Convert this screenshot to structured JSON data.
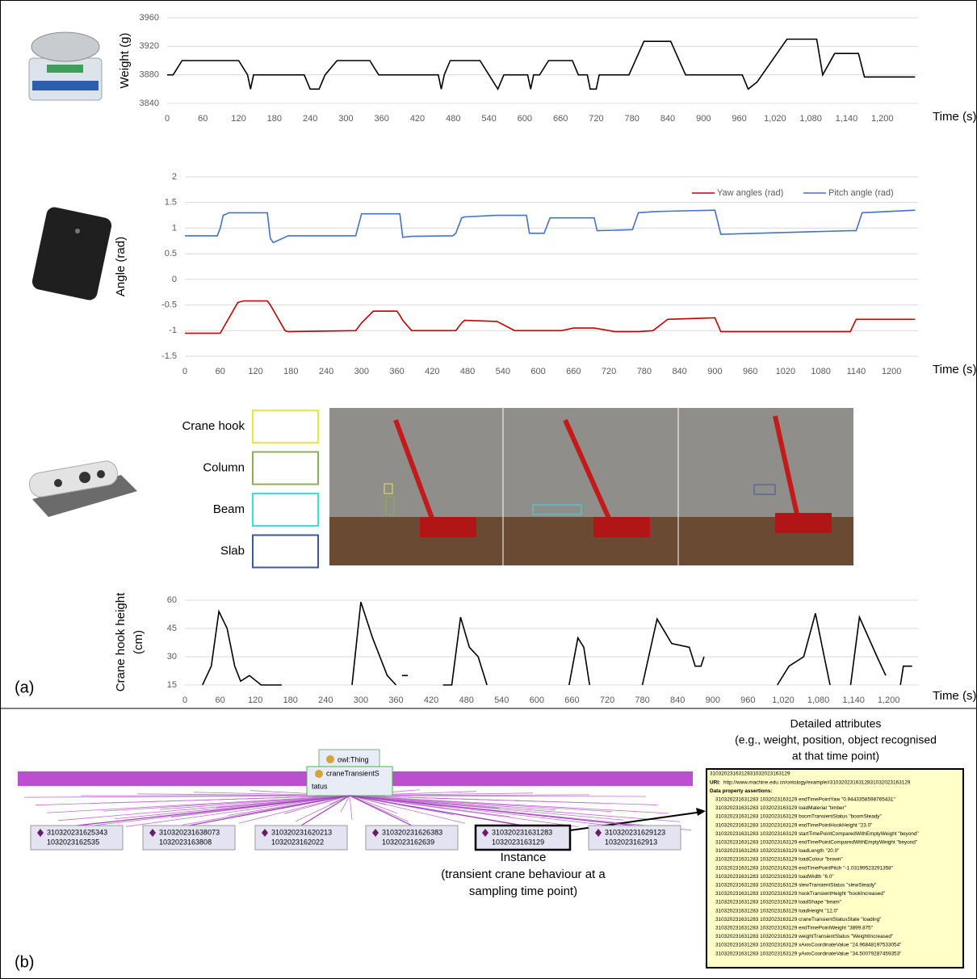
{
  "chart_data": [
    {
      "type": "line",
      "ylabel": "Weight (g)",
      "xlabel": "Time (s)",
      "xlim": [
        0,
        1260
      ],
      "ylim": [
        3840,
        3960
      ],
      "yticks": [
        3840,
        3880,
        3920,
        3960
      ],
      "xticks": [
        0,
        60,
        120,
        180,
        240,
        300,
        360,
        420,
        480,
        540,
        600,
        660,
        720,
        780,
        840,
        900,
        960,
        {
          "value": 1020,
          "label": "1,020"
        },
        {
          "value": 1080,
          "label": "1,080"
        },
        {
          "value": 1140,
          "label": "1,140"
        },
        {
          "value": 1200,
          "label": "1,200"
        }
      ],
      "grid": true,
      "x": [
        0,
        10,
        25,
        75,
        120,
        135,
        140,
        145,
        185,
        230,
        240,
        255,
        265,
        285,
        340,
        355,
        455,
        460,
        465,
        475,
        525,
        540,
        555,
        565,
        605,
        610,
        615,
        625,
        640,
        680,
        690,
        705,
        710,
        720,
        725,
        775,
        800,
        845,
        870,
        965,
        975,
        990,
        1040,
        1090,
        1100,
        1120,
        1160,
        1170,
        1255
      ],
      "series": [
        {
          "color": "#000000",
          "values": [
            3880,
            3880,
            3900,
            3900,
            3900,
            3880,
            3860,
            3880,
            3880,
            3880,
            3860,
            3860,
            3880,
            3900,
            3900,
            3880,
            3880,
            3860,
            3880,
            3900,
            3900,
            3880,
            3860,
            3880,
            3880,
            3860,
            3880,
            3880,
            3900,
            3900,
            3880,
            3880,
            3860,
            3860,
            3880,
            3880,
            3927,
            3927,
            3880,
            3880,
            3860,
            3870,
            3930,
            3930,
            3880,
            3910,
            3910,
            3877,
            3877
          ]
        }
      ]
    },
    {
      "type": "line",
      "ylabel": "Angle (rad)",
      "xlabel": "Time (s)",
      "xlim": [
        0,
        1245
      ],
      "ylim": [
        -1.5,
        2
      ],
      "yticks": [
        -1.5,
        -1,
        -0.5,
        0,
        0.5,
        1,
        1.5,
        2
      ],
      "xticks": [
        0,
        60,
        120,
        180,
        240,
        300,
        360,
        420,
        480,
        540,
        600,
        660,
        720,
        780,
        840,
        900,
        960,
        1020,
        1080,
        1140,
        1200
      ],
      "grid": true,
      "legend": "top-right",
      "x": [
        0,
        55,
        60,
        65,
        75,
        90,
        100,
        140,
        145,
        150,
        170,
        175,
        290,
        300,
        320,
        360,
        365,
        370,
        385,
        455,
        460,
        470,
        475,
        530,
        560,
        580,
        585,
        610,
        620,
        640,
        660,
        695,
        700,
        730,
        760,
        770,
        795,
        820,
        900,
        910,
        1130,
        1140,
        1150,
        1240
      ],
      "series": [
        {
          "name": "Yaw angles (rad)",
          "color": "#c00000",
          "values": [
            -1.05,
            -1.05,
            -1.05,
            -0.95,
            -0.75,
            -0.45,
            -0.42,
            -0.42,
            -0.5,
            -0.6,
            -1.0,
            -1.02,
            -1.0,
            -0.85,
            -0.62,
            -0.62,
            -0.7,
            -0.8,
            -1.0,
            -1.0,
            -1.0,
            -0.85,
            -0.8,
            -0.82,
            -1.0,
            -1.0,
            -1.0,
            -1.0,
            -1.0,
            -1.0,
            -0.95,
            -0.95,
            -0.96,
            -1.02,
            -1.02,
            -1.02,
            -1.0,
            -0.78,
            -0.75,
            -1.02,
            -1.02,
            -0.78,
            -0.78,
            -0.78
          ]
        },
        {
          "name": "Pitch angle (rad)",
          "color": "#4472c4",
          "values": [
            0.85,
            0.85,
            1.0,
            1.25,
            1.3,
            1.3,
            1.3,
            1.3,
            0.8,
            0.72,
            0.82,
            0.85,
            0.85,
            1.28,
            1.28,
            1.28,
            1.28,
            0.82,
            0.84,
            0.85,
            0.9,
            1.2,
            1.22,
            1.25,
            1.25,
            1.25,
            0.9,
            0.9,
            1.2,
            1.2,
            1.2,
            1.2,
            0.95,
            0.96,
            0.97,
            1.3,
            1.32,
            1.33,
            1.35,
            0.88,
            0.95,
            0.95,
            1.3,
            1.35
          ]
        }
      ]
    },
    {
      "type": "line",
      "ylabel": [
        "Crane hook height",
        "(cm)"
      ],
      "xlabel": "Time (s)",
      "xlim": [
        0,
        1250
      ],
      "ylim": [
        15,
        60
      ],
      "yticks": [
        15,
        30,
        45,
        60
      ],
      "xticks": [
        0,
        60,
        120,
        180,
        240,
        300,
        360,
        420,
        480,
        540,
        600,
        660,
        720,
        780,
        840,
        900,
        960,
        {
          "value": 1020,
          "label": "1,020"
        },
        {
          "value": 1080,
          "label": "1,080"
        },
        {
          "value": 1140,
          "label": "1,140"
        },
        {
          "value": 1200,
          "label": "1,200"
        }
      ],
      "grid": true,
      "x": [
        30,
        45,
        58,
        72,
        85,
        95,
        110,
        130,
        165,
        220,
        285,
        300,
        320,
        345,
        360,
        365,
        370,
        380,
        410,
        440,
        455,
        470,
        485,
        500,
        515,
        585,
        655,
        670,
        680,
        690,
        720,
        750,
        765,
        780,
        805,
        830,
        860,
        870,
        880,
        885,
        950,
        1010,
        1030,
        1055,
        1075,
        1090,
        1100,
        1118,
        1135,
        1150,
        1180,
        1195,
        1208,
        1220,
        1225,
        1240
      ],
      "series": [
        {
          "color": "#000000",
          "values": [
            15,
            25,
            54,
            45,
            25,
            17,
            20,
            15,
            15,
            null,
            15,
            59,
            40,
            20,
            15,
            null,
            20,
            20,
            null,
            15,
            15,
            51,
            35,
            30,
            15,
            null,
            15,
            40,
            35,
            15,
            null,
            15,
            null,
            15,
            50,
            37,
            35,
            25,
            25,
            30,
            null,
            15,
            25,
            30,
            53,
            30,
            15,
            null,
            15,
            51,
            30,
            20,
            null,
            15,
            25,
            25
          ]
        }
      ]
    }
  ],
  "panel_labels": [
    "(a)",
    "(b)"
  ],
  "camera_legend": [
    {
      "label": "Crane hook",
      "color": "#e8e84a"
    },
    {
      "label": "Column",
      "color": "#8db04c"
    },
    {
      "label": "Beam",
      "color": "#3fdcdc"
    },
    {
      "label": "Slab",
      "color": "#3c5a9a"
    }
  ],
  "ontology": {
    "root": "owl:Thing",
    "class": [
      "craneTransientS",
      "tatus"
    ],
    "instances": [
      [
        "310320231625343",
        "1032023162535"
      ],
      [
        "310320231638073",
        "1032023163808"
      ],
      [
        "310320231620213",
        "1032023162022"
      ],
      [
        "310320231626383",
        "1032023162639"
      ],
      [
        "310320231631283",
        "1032023163129"
      ],
      [
        "310320231629123",
        "1032023162913"
      ]
    ],
    "instance_caption": [
      "Instance",
      "(transient crane behaviour at a",
      "sampling time point)"
    ],
    "attributes_caption": [
      "Detailed attributes",
      "(e.g., weight, position, object recognised",
      "at that time point)"
    ],
    "attributes": {
      "header": "3103202316312831032023163129",
      "uri_label": "URI:",
      "uri": "http://www.machine.edu.cn/ontology/example#3103202316312831032023163129",
      "assertions_label": "Data property assertions:",
      "assertions": [
        "310320231631283 1032023163129 endTimePointYaw \"0.9443358598765431\"",
        "310320231631283 1032023163129 loadMaterial \"timber\"",
        "310320231631283 1032023163129 boomTransientStatus \"boomSteady\"",
        "310320231631283 1032023163129 endTimePointHookHeight \"23.0\"",
        "310320231631283 1032023163129 startTimePointComparedWithEmptyWeight \"beyond\"",
        "310320231631283 1032023163129 endTimePointComparedWithEmptyWeight \"beyond\"",
        "310320231631283 1032023163129 loadLength \"20.0\"",
        "310320231631283 1032023163129 loadColour \"brown\"",
        "310320231631283 1032023163129 endTimePointPitch \"-1.03199523291358\"",
        "310320231631283 1032023163129 loadWidth \"6.0\"",
        "310320231631283 1032023163129 slewTransientStatus \"slewSteady\"",
        "310320231631283 1032023163129 hookTransientHeight \"hookIncreased\"",
        "310320231631283 1032023163129 loadShape \"beam\"",
        "310320231631283 1032023163129 loadHeight \"12.0\"",
        "310320231631283 1032023163129 craneTransientStatusState \"loading\"",
        "310320231631283 1032023163129 endTimePointWeight \"3899.875\"",
        "310320231631283 1032023163129 weightTransientStatus \"WeightIncreased\"",
        "310320231631283 1032023163129 xAxisCoordinateValue \"24.96848197533054\"",
        "310320231631283 1032023163129 yAxisCoordinateValue \"34.50079287459353\""
      ]
    }
  }
}
